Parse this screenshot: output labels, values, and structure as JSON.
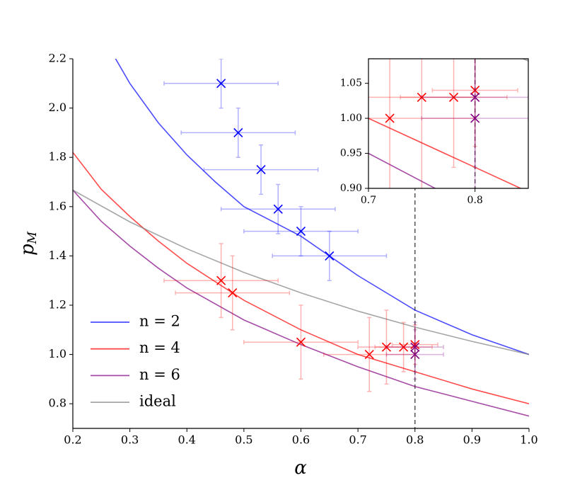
{
  "chart_data": {
    "type": "line",
    "xlabel": "α",
    "ylabel": "pM",
    "xlim": [
      0.2,
      1.0
    ],
    "ylim": [
      0.7,
      2.2
    ],
    "xticks": [
      0.2,
      0.3,
      0.4,
      0.5,
      0.6,
      0.7,
      0.8,
      0.9,
      {
        "value": 1,
        "label": "1.0"
      }
    ],
    "yticks": [
      0.8,
      {
        "value": 1,
        "label": "1.0"
      },
      1.2,
      1.4,
      1.6,
      1.8,
      {
        "value": 2,
        "label": "2.0"
      },
      2.2
    ],
    "legend": "lower left",
    "vline": 0.8,
    "vline_style": "dashed",
    "series": [
      {
        "name": "n = 2",
        "color": "#0000ff",
        "x": [
          0.27,
          0.3,
          0.35,
          0.4,
          0.45,
          0.5,
          0.6,
          0.7,
          0.8,
          0.9,
          1.0
        ],
        "values": [
          2.22,
          2.1,
          1.94,
          1.81,
          1.7,
          1.6,
          1.48,
          1.32,
          1.18,
          1.08,
          1.0
        ]
      },
      {
        "name": "n = 4",
        "color": "#ff0000",
        "x": [
          0.2,
          0.25,
          0.3,
          0.35,
          0.4,
          0.5,
          0.6,
          0.7,
          0.8,
          0.9,
          1.0
        ],
        "values": [
          1.82,
          1.67,
          1.56,
          1.46,
          1.37,
          1.22,
          1.1,
          1.0,
          0.93,
          0.86,
          0.8
        ]
      },
      {
        "name": "n = 6",
        "color": "#800080",
        "x": [
          0.2,
          0.25,
          0.3,
          0.35,
          0.4,
          0.5,
          0.6,
          0.7,
          0.8,
          0.9,
          1.0
        ],
        "values": [
          1.667,
          1.54,
          1.44,
          1.35,
          1.27,
          1.14,
          1.04,
          0.95,
          0.87,
          0.81,
          0.75
        ]
      },
      {
        "name": "ideal",
        "color": "#808080",
        "x": [
          0.2,
          0.3,
          0.4,
          0.5,
          0.6,
          0.7,
          0.8,
          0.9,
          1.0
        ],
        "values": [
          1.667,
          1.538,
          1.429,
          1.333,
          1.25,
          1.176,
          1.111,
          1.053,
          1.0
        ]
      }
    ],
    "points": [
      {
        "color": "#0000ff",
        "x": [
          0.46,
          0.49,
          0.53,
          0.56,
          0.6,
          0.65
        ],
        "values": [
          2.1,
          1.9,
          1.75,
          1.59,
          1.5,
          1.4
        ],
        "xerr": [
          0.1,
          0.1,
          0.1,
          0.1,
          0.1,
          0.1
        ],
        "yerr": [
          0.1,
          0.1,
          0.1,
          0.1,
          0.1,
          0.1
        ]
      },
      {
        "color": "#ff0000",
        "x": [
          0.46,
          0.48,
          0.6,
          0.72,
          0.75,
          0.78,
          0.8
        ],
        "values": [
          1.3,
          1.25,
          1.05,
          1.0,
          1.03,
          1.03,
          1.04
        ],
        "xerr": [
          0.1,
          0.1,
          0.1,
          0.08,
          0.05,
          0.05,
          0.04
        ],
        "yerr": [
          0.15,
          0.15,
          0.15,
          0.15,
          0.15,
          0.1,
          0.08
        ]
      },
      {
        "color": "#800080",
        "x": [
          0.8,
          0.8
        ],
        "values": [
          1.03,
          1.0
        ],
        "xerr": [
          0.05,
          0.05
        ],
        "yerr": [
          0.1,
          0.1
        ]
      }
    ],
    "inset": {
      "xlim": [
        0.7,
        0.85
      ],
      "ylim": [
        0.9,
        1.085
      ],
      "xticks": [
        0.7,
        0.8
      ],
      "yticks": [
        {
          "value": 0.9,
          "label": "0.90"
        },
        0.95,
        {
          "value": 1,
          "label": "1.00"
        },
        1.05
      ]
    }
  }
}
